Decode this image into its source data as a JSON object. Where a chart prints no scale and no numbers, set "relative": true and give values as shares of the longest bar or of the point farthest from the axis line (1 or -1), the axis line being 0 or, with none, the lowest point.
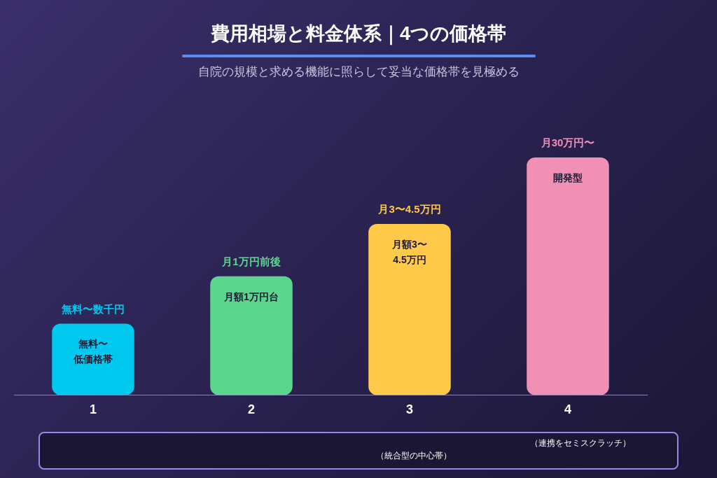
{
  "chart_data": {
    "type": "bar",
    "title": "費用相場と料金体系｜4つの価格帯",
    "subtitle": "自院の規模と求める機能に照らして妥当な価格帯を見極める",
    "relative": true,
    "categories": [
      "1",
      "2",
      "3",
      "4"
    ],
    "values": [
      0.3,
      0.5,
      0.72,
      1
    ],
    "colors": [
      "#00c8ee",
      "#5cd68e",
      "#ffc94a",
      "#f090b4"
    ],
    "annotations": [
      "無料〜数千円",
      "無料〜低価格帯",
      "月1万円前後",
      "月額1万円台",
      "月3〜4.5万円",
      "月額3〜4.5万円",
      "月30万円〜",
      "開発型",
      "（統合型の中心帯）",
      "（連携をセミスクラッチ）"
    ]
  }
}
